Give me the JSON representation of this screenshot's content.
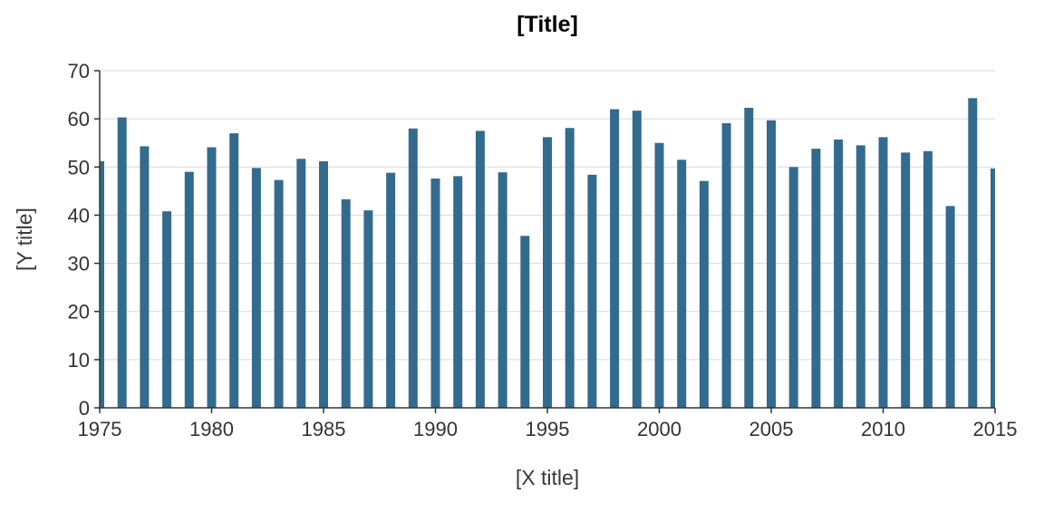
{
  "chart_data": {
    "type": "bar",
    "title": "[Title]",
    "xlabel": "[X title]",
    "ylabel": "[Y title]",
    "xlim": [
      1975,
      2015
    ],
    "ylim": [
      0,
      70
    ],
    "x_ticks": [
      1975,
      1980,
      1985,
      1990,
      1995,
      2000,
      2005,
      2010,
      2015
    ],
    "y_ticks": [
      0,
      10,
      20,
      30,
      40,
      50,
      60,
      70
    ],
    "grid": "horizontal",
    "legend": "none",
    "bar_color": "#336b8f",
    "x": [
      1975,
      1976,
      1977,
      1978,
      1979,
      1980,
      1981,
      1982,
      1983,
      1984,
      1985,
      1986,
      1987,
      1988,
      1989,
      1990,
      1991,
      1992,
      1993,
      1994,
      1995,
      1996,
      1997,
      1998,
      1999,
      2000,
      2001,
      2002,
      2003,
      2004,
      2005,
      2006,
      2007,
      2008,
      2009,
      2010,
      2011,
      2012,
      2013,
      2014,
      2015
    ],
    "values": [
      51.2,
      60.3,
      54.3,
      40.8,
      49.0,
      54.1,
      57.0,
      49.8,
      47.3,
      51.7,
      51.2,
      43.3,
      41.0,
      48.8,
      58.0,
      47.6,
      48.1,
      57.5,
      48.9,
      35.7,
      56.2,
      58.1,
      48.4,
      62.0,
      61.7,
      55.0,
      51.5,
      47.1,
      59.1,
      62.3,
      59.7,
      50.0,
      53.8,
      55.7,
      54.5,
      56.2,
      53.0,
      53.3,
      41.9,
      64.3,
      49.7
    ]
  }
}
